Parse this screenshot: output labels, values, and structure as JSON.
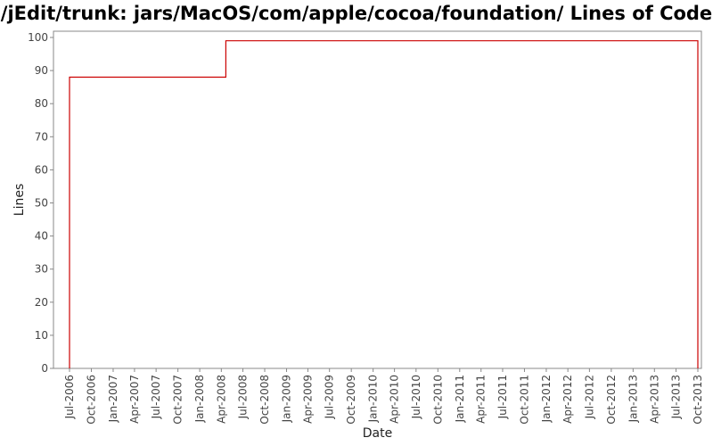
{
  "chart_data": {
    "type": "line",
    "title": "/jEdit/trunk: jars/MacOS/com/apple/cocoa/foundation/ Lines of Code",
    "xlabel": "Date",
    "ylabel": "Lines",
    "ylim": [
      0,
      100
    ],
    "y_ticks": [
      "0",
      "10",
      "20",
      "30",
      "40",
      "50",
      "60",
      "70",
      "80",
      "90",
      "100"
    ],
    "x_tick_labels": [
      "Jul-2006",
      "Oct-2006",
      "Jan-2007",
      "Apr-2007",
      "Jul-2007",
      "Oct-2007",
      "Jan-2008",
      "Apr-2008",
      "Jul-2008",
      "Oct-2008",
      "Jan-2009",
      "Apr-2009",
      "Jul-2009",
      "Oct-2009",
      "Jan-2010",
      "Apr-2010",
      "Jul-2010",
      "Oct-2010",
      "Jan-2011",
      "Apr-2011",
      "Jul-2011",
      "Oct-2011",
      "Jan-2012",
      "Apr-2012",
      "Jul-2012",
      "Oct-2012",
      "Jan-2013",
      "Apr-2013",
      "Jul-2013",
      "Oct-2013"
    ],
    "grid": false,
    "step": true,
    "series": [
      {
        "color": "#cc0000",
        "points": [
          {
            "x": "2006-07-01",
            "y": 0
          },
          {
            "x": "2006-07-01",
            "y": 88
          },
          {
            "x": "2008-04-20",
            "y": 88
          },
          {
            "x": "2008-04-20",
            "y": 99
          },
          {
            "x": "2013-10-01",
            "y": 99
          },
          {
            "x": "2013-10-01",
            "y": 0
          }
        ]
      }
    ]
  }
}
